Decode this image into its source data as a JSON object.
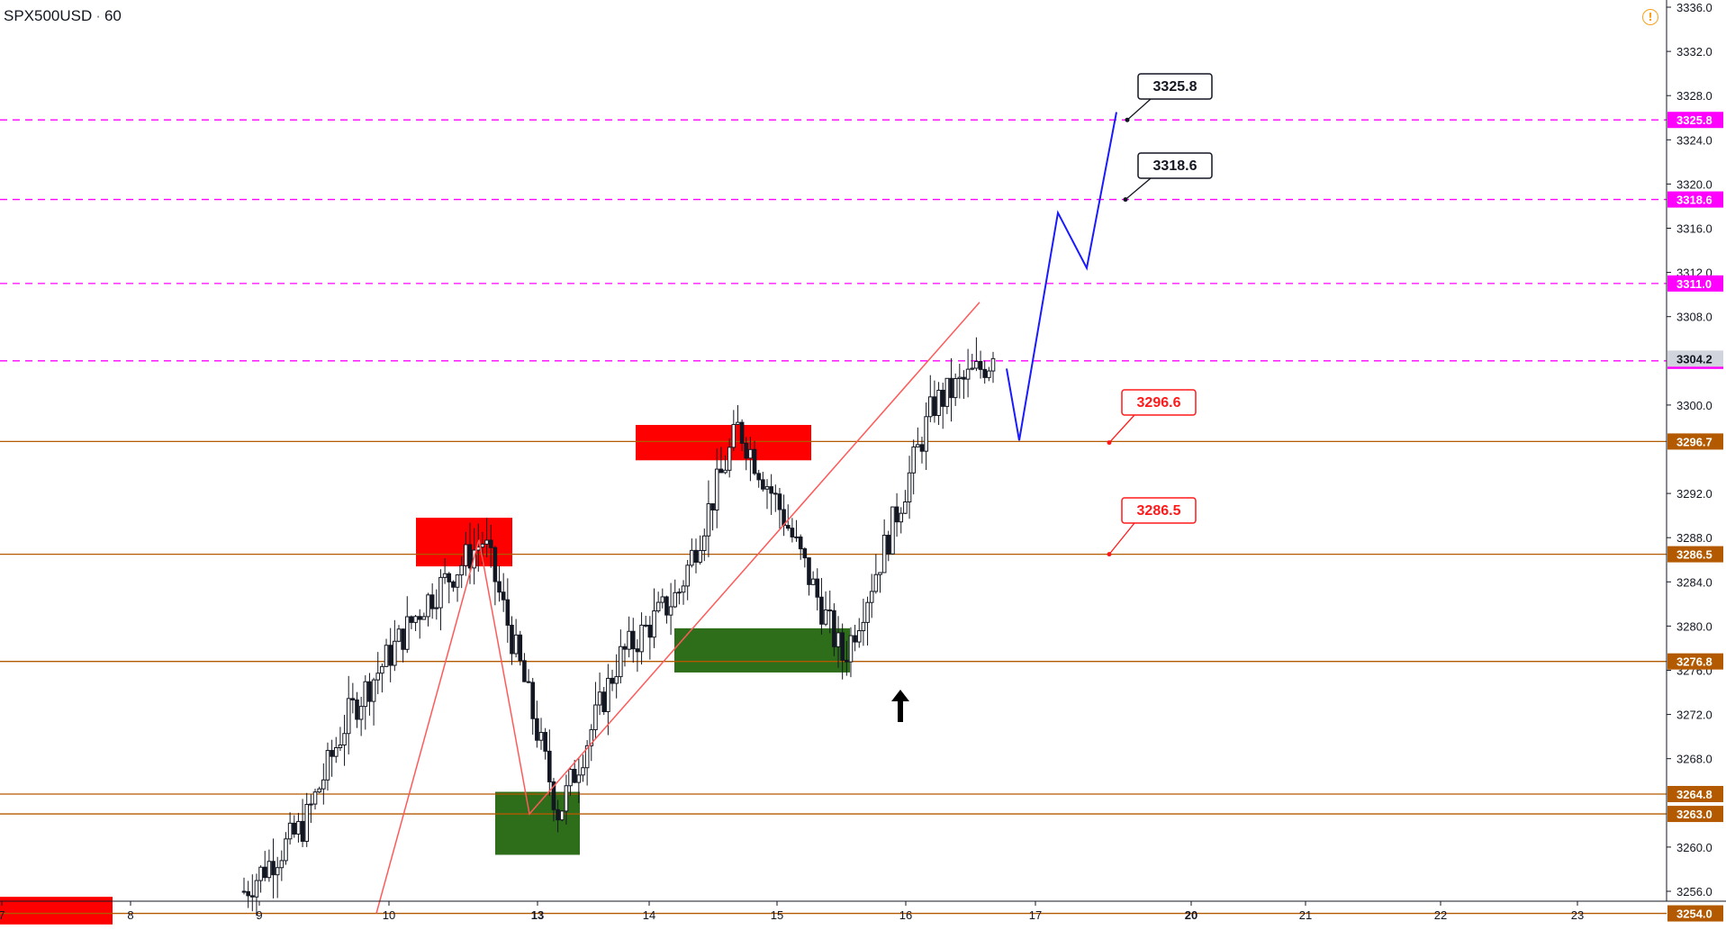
{
  "header": {
    "symbol": "SPX500USD",
    "interval": "60"
  },
  "icons": {
    "warning": "warning-circle-icon",
    "settings": "gear-icon"
  },
  "colors": {
    "up": "#ffffff",
    "down": "#131722",
    "resistance": "#b35a00",
    "dashed": "#ff00ff",
    "zone_red": "#ff0000",
    "zone_green": "#2e6e1a",
    "trend": "#ff5a5a",
    "projection": "#1a1aff",
    "label_red": "#ff1a1a",
    "axis_text": "#131722",
    "current_price": "#9b9b9b"
  },
  "chart_data": {
    "type": "candlestick",
    "symbol": "SPX500USD",
    "interval": "60",
    "ylim": [
      3253.0,
      3336.5
    ],
    "y_ticks": [
      3336.0,
      3332.0,
      3328.0,
      3324.0,
      3320.0,
      3316.0,
      3312.0,
      3308.0,
      3300.0,
      3292.0,
      3288.0,
      3284.0,
      3280.0,
      3276.0,
      3272.0,
      3268.0,
      3260.0,
      3256.0
    ],
    "x_ticks": [
      "7",
      "8",
      "9",
      "10",
      "13",
      "14",
      "15",
      "16",
      "17",
      "20",
      "21",
      "22",
      "23"
    ],
    "x_tick_bold": [
      "13",
      "20"
    ],
    "horizontal_levels": [
      {
        "value": 3296.7,
        "label": "3296.7",
        "style": "solid"
      },
      {
        "value": 3286.5,
        "label": "3286.5",
        "style": "solid"
      },
      {
        "value": 3276.8,
        "label": "3276.8",
        "style": "solid"
      },
      {
        "value": 3264.8,
        "label": "3264.8",
        "style": "solid"
      },
      {
        "value": 3263.0,
        "label": "3263.0",
        "style": "solid"
      },
      {
        "value": 3254.0,
        "label": "3254.0",
        "style": "solid"
      }
    ],
    "dashed_levels": [
      {
        "value": 3325.8,
        "label": "3325.8"
      },
      {
        "value": 3318.6,
        "label": "3318.6"
      },
      {
        "value": 3311.0,
        "label": "3311.0"
      },
      {
        "value": 3304.0,
        "label": "3304.0"
      }
    ],
    "current_price": {
      "value": 3304.2,
      "label": "3304.2"
    },
    "callouts": [
      {
        "text": "3325.8",
        "price": 3325.8,
        "style": "black"
      },
      {
        "text": "3318.6",
        "price": 3318.6,
        "style": "black"
      },
      {
        "text": "3296.6",
        "price": 3296.6,
        "style": "red"
      },
      {
        "text": "3286.5",
        "price": 3286.5,
        "style": "red"
      }
    ],
    "zones": [
      {
        "color": "red",
        "price_top": 3298.2,
        "price_bottom": 3295.0
      },
      {
        "color": "red",
        "price_top": 3289.8,
        "price_bottom": 3285.4
      },
      {
        "color": "green",
        "price_top": 3279.8,
        "price_bottom": 3275.8
      },
      {
        "color": "green",
        "price_top": 3265.0,
        "price_bottom": 3259.3
      },
      {
        "color": "red",
        "price_top": 3255.5,
        "price_bottom": 3253.0
      }
    ],
    "candles_summary": {
      "start_close": 3256.0,
      "swing_high_1": 3287.8,
      "swing_low": 3263.0,
      "swing_high_2": 3298.0,
      "pullback_low": 3277.0,
      "last_high": 3309.3,
      "last_close": 3304.2
    }
  }
}
